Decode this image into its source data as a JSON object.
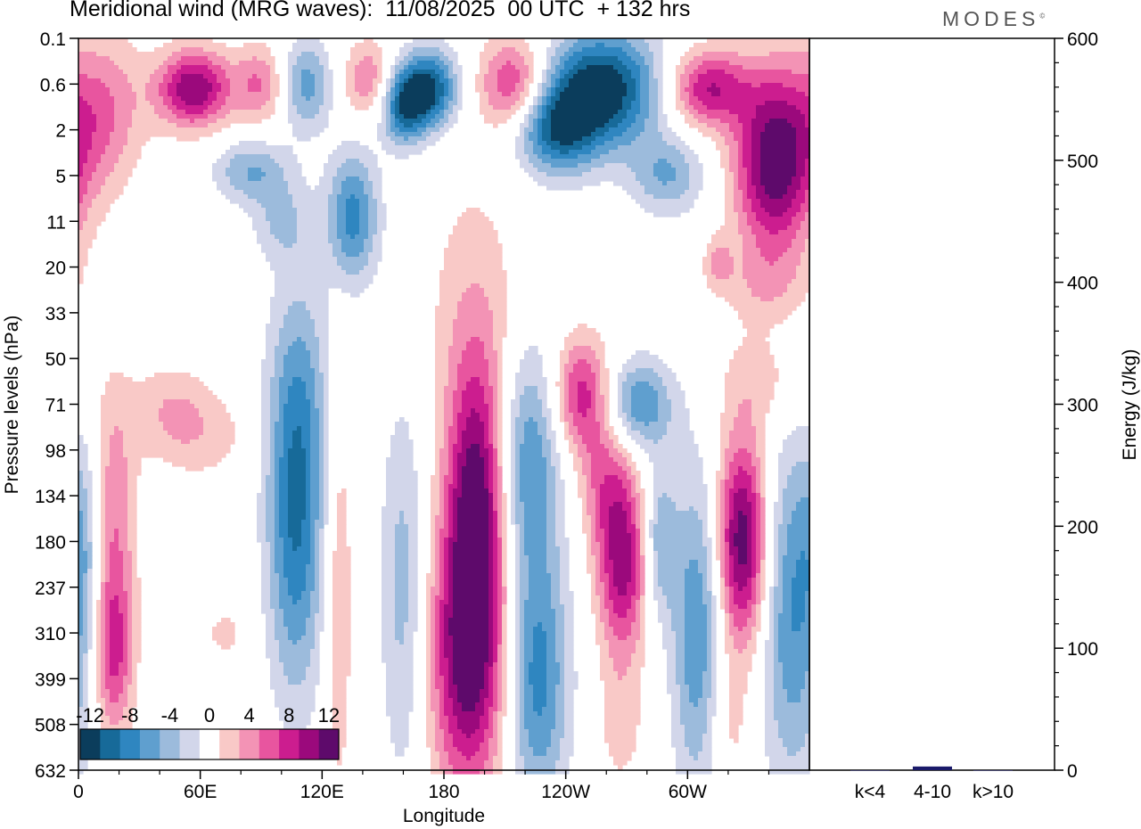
{
  "title": "Meridional wind (MRG waves):  11/08/2025  00 UTC  + 132 hrs",
  "brand": "MODES",
  "brand_mark": "©",
  "chart_data": {
    "type": "heatmap",
    "title": "Meridional wind (MRG waves):  11/08/2025  00 UTC  + 132 hrs",
    "xlabel": "Longitude",
    "ylabel": "Pressure levels (hPa)",
    "x_ticks": [
      "0",
      "60E",
      "120E",
      "180",
      "120W",
      "60W"
    ],
    "y_ticks": [
      "0.1",
      "0.6",
      "2",
      "5",
      "11",
      "20",
      "33",
      "50",
      "71",
      "98",
      "134",
      "180",
      "237",
      "310",
      "399",
      "508",
      "632"
    ],
    "x_range_deg": [
      0,
      360
    ],
    "colorbar": {
      "labels": [
        "-12",
        "-8",
        "-4",
        "0",
        "4",
        "8",
        "12"
      ],
      "levels": [
        -14,
        -12,
        -10,
        -8,
        -6,
        -4,
        -2,
        2,
        4,
        6,
        8,
        10,
        12,
        14
      ],
      "colors": [
        "#0b3d5c",
        "#176a99",
        "#2f86c0",
        "#5f9fcf",
        "#9cbbdc",
        "#d2d6ea",
        "#ffffff",
        "#f9c9c7",
        "#f393b5",
        "#e8559f",
        "#cc1d8f",
        "#9b097c",
        "#5e0a6b"
      ]
    },
    "blobs": [
      {
        "lon": 57,
        "level": 1.1,
        "value": 12,
        "wd": 13,
        "hl": 0.6
      },
      {
        "lon": 12,
        "level": 1.6,
        "value": 6,
        "wd": 14,
        "hl": 1.2
      },
      {
        "lon": 90,
        "level": 1.0,
        "value": 6,
        "wd": 9,
        "hl": 0.6
      },
      {
        "lon": 112,
        "level": 1.0,
        "value": -7,
        "wd": 9,
        "hl": 0.7
      },
      {
        "lon": 143,
        "level": 0.9,
        "value": 6,
        "wd": 9,
        "hl": 0.6
      },
      {
        "lon": 173,
        "level": 1.1,
        "value": -12,
        "wd": 10,
        "hl": 0.6
      },
      {
        "lon": 160,
        "level": 1.5,
        "value": -10,
        "wd": 8,
        "hl": 0.6
      },
      {
        "lon": 215,
        "level": 1.0,
        "value": 9,
        "wd": 12,
        "hl": 0.7
      },
      {
        "lon": 258,
        "level": 1.1,
        "value": -14,
        "wd": 20,
        "hl": 0.9
      },
      {
        "lon": 235,
        "level": 2.0,
        "value": -10,
        "wd": 14,
        "hl": 0.7
      },
      {
        "lon": 310,
        "level": 1.1,
        "value": 10,
        "wd": 14,
        "hl": 0.6
      },
      {
        "lon": 343,
        "level": 2.7,
        "value": 14,
        "wd": 14,
        "hl": 1.4
      },
      {
        "lon": 85,
        "level": 2.9,
        "value": -6,
        "wd": 13,
        "hl": 0.5
      },
      {
        "lon": 135,
        "level": 3.9,
        "value": -9,
        "wd": 9,
        "hl": 1.0
      },
      {
        "lon": 100,
        "level": 4.0,
        "value": -4,
        "wd": 10,
        "hl": 0.6
      },
      {
        "lon": 290,
        "level": 3.0,
        "value": -6,
        "wd": 13,
        "hl": 0.6
      },
      {
        "lon": 315,
        "level": 4.9,
        "value": 4,
        "wd": 5,
        "hl": 0.4
      },
      {
        "lon": 195,
        "level": 6.1,
        "value": 3,
        "wd": 18,
        "hl": 2.4
      },
      {
        "lon": 45,
        "level": 8.0,
        "value": 3,
        "wd": 14,
        "hl": 0.7
      },
      {
        "lon": 110,
        "level": 7.5,
        "value": -3,
        "wd": 12,
        "hl": 1.8
      },
      {
        "lon": 338,
        "level": 7.5,
        "value": 3,
        "wd": 16,
        "hl": 0.8
      },
      {
        "lon": 338,
        "level": 5.4,
        "value": 3,
        "wd": 16,
        "hl": 0.6
      },
      {
        "lon": 60,
        "level": 8.7,
        "value": 3,
        "wd": 18,
        "hl": 0.7
      },
      {
        "lon": 17,
        "level": 10.5,
        "value": 6,
        "wd": 8,
        "hl": 2.0
      },
      {
        "lon": 17,
        "level": 13.5,
        "value": 8,
        "wd": 7,
        "hl": 1.3
      },
      {
        "lon": 107,
        "level": 10.5,
        "value": -10,
        "wd": 10,
        "hl": 2.7
      },
      {
        "lon": 128,
        "level": 12.0,
        "value": 4,
        "wd": 5,
        "hl": 3.5
      },
      {
        "lon": 160,
        "level": 12.0,
        "value": -5,
        "wd": 8,
        "hl": 3.0
      },
      {
        "lon": 192,
        "level": 13.5,
        "value": 13,
        "wd": 13,
        "hl": 2.2
      },
      {
        "lon": 196,
        "level": 10.0,
        "value": 11,
        "wd": 10,
        "hl": 2.2
      },
      {
        "lon": 222,
        "level": 9.2,
        "value": -8,
        "wd": 11,
        "hl": 1.8
      },
      {
        "lon": 226,
        "level": 14.0,
        "value": -9,
        "wd": 11,
        "hl": 2.0
      },
      {
        "lon": 248,
        "level": 7.8,
        "value": 9,
        "wd": 10,
        "hl": 0.9
      },
      {
        "lon": 259,
        "level": 9.7,
        "value": 5,
        "wd": 9,
        "hl": 1.0
      },
      {
        "lon": 268,
        "level": 11.5,
        "value": 11,
        "wd": 9,
        "hl": 1.4
      },
      {
        "lon": 276,
        "level": 8.0,
        "value": -8,
        "wd": 12,
        "hl": 0.7
      },
      {
        "lon": 286,
        "level": 11.0,
        "value": -6,
        "wd": 6,
        "hl": 1.2
      },
      {
        "lon": 305,
        "level": 13.0,
        "value": -8,
        "wd": 9,
        "hl": 2.5
      },
      {
        "lon": 327,
        "level": 11.0,
        "value": 14,
        "wd": 9,
        "hl": 1.6
      },
      {
        "lon": 352,
        "level": 12.5,
        "value": -8,
        "wd": 12,
        "hl": 2.7
      },
      {
        "lon": 3,
        "level": 11.0,
        "value": -3,
        "wd": 6,
        "hl": 1.5
      },
      {
        "lon": 320,
        "level": 15.0,
        "value": 3,
        "wd": 8,
        "hl": 1.2
      },
      {
        "lon": 72,
        "level": 13.0,
        "value": 2.5,
        "wd": 8,
        "hl": 0.5
      },
      {
        "lon": 267,
        "level": 15.0,
        "value": 3,
        "wd": 8,
        "hl": 1.0
      }
    ],
    "right_panel": {
      "type": "bar",
      "categories": [
        "k<4",
        "4-10",
        "k>10"
      ],
      "values": [
        0,
        3,
        0
      ],
      "ylabel": "Energy (J/kg)",
      "ylim": [
        0,
        600
      ],
      "y_ticks": [
        "0",
        "100",
        "200",
        "300",
        "400",
        "500",
        "600"
      ],
      "bar_color": "#1a1a6a"
    }
  }
}
